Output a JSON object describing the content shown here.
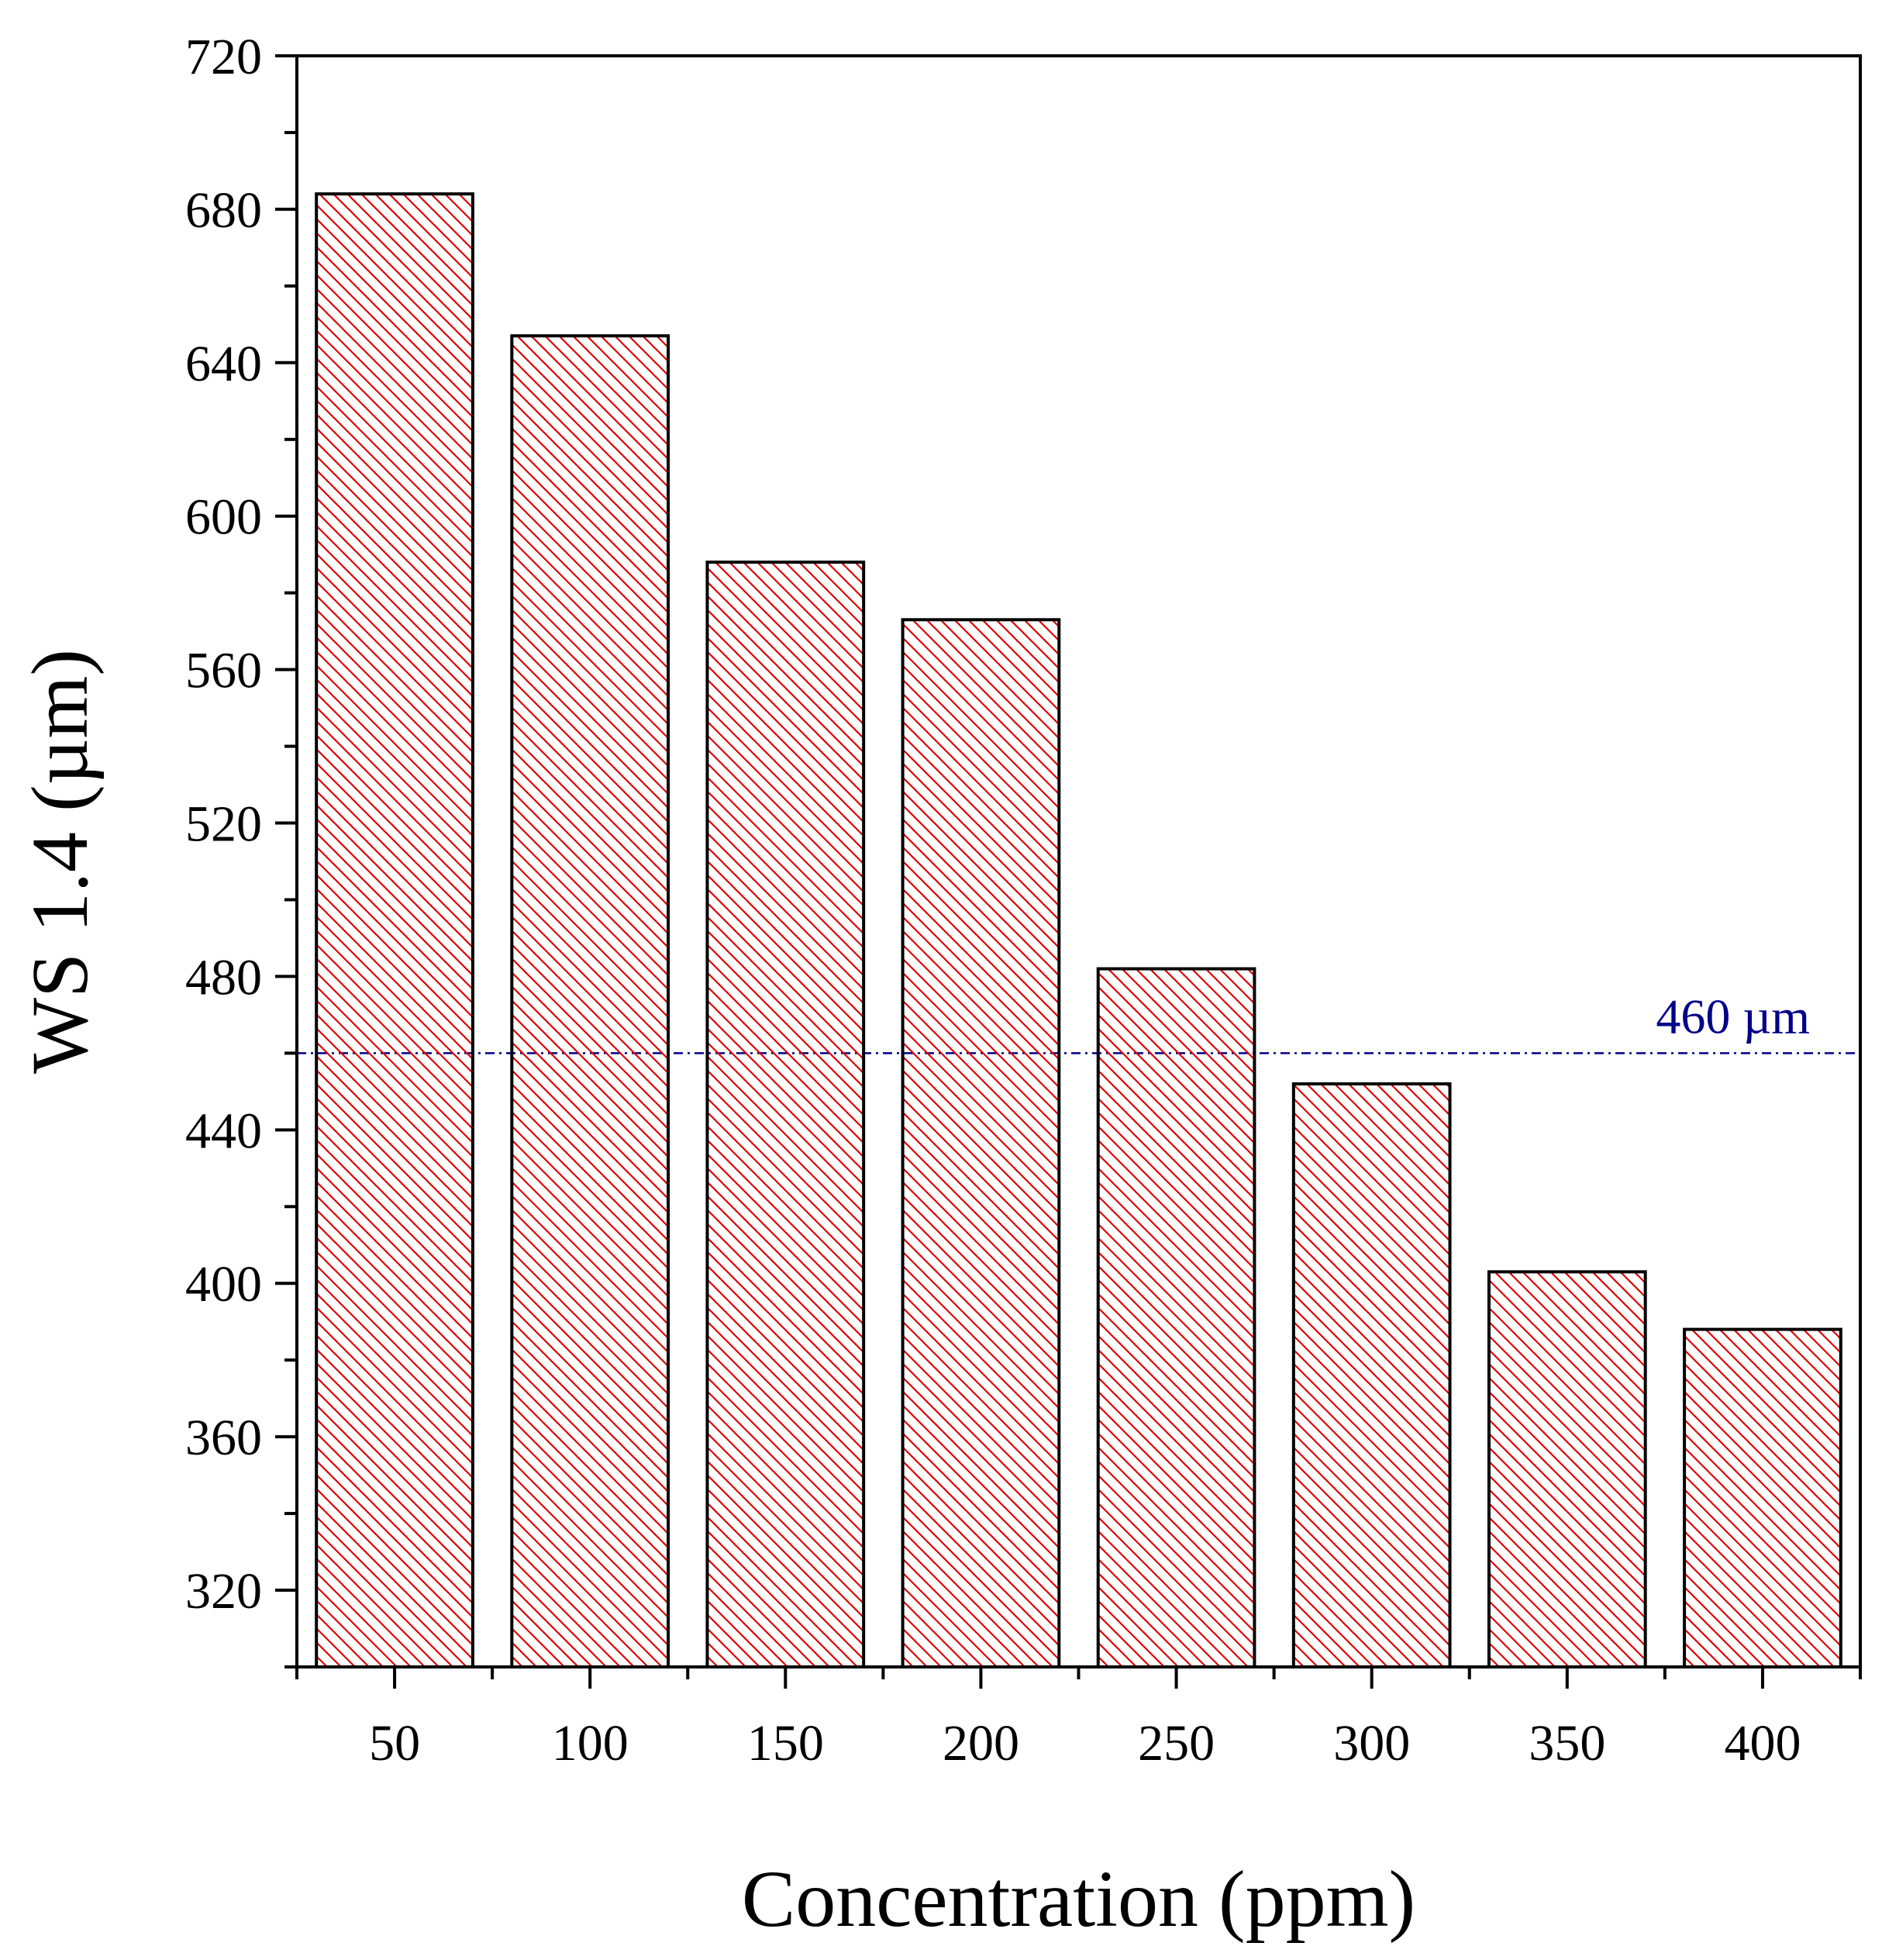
{
  "chart_data": {
    "type": "bar",
    "title": "",
    "xlabel": "Concentration (ppm)",
    "ylabel": "WS 1.4 (µm)",
    "categories": [
      "50",
      "100",
      "150",
      "200",
      "250",
      "300",
      "350",
      "400"
    ],
    "values": [
      684,
      647,
      588,
      573,
      482,
      452,
      403,
      388
    ],
    "ylim": [
      300,
      720
    ],
    "yticks": [
      "320",
      "360",
      "400",
      "440",
      "480",
      "520",
      "560",
      "600",
      "640",
      "680",
      "720"
    ],
    "bar_fill": "hatched",
    "colors": {
      "bar_hatch": "#e00000",
      "bar_edge": "#000000",
      "reference_line": "#00008b"
    },
    "reference_line": {
      "value": 460,
      "label": "460 µm",
      "style": "dash-dot"
    }
  }
}
